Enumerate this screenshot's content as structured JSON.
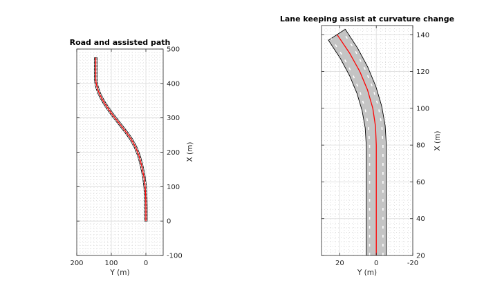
{
  "chart_data": [
    {
      "type": "line",
      "title": "Road and assisted path",
      "xlabel": "Y (m)",
      "ylabel": "X (m)",
      "xlim": [
        200,
        -50
      ],
      "ylim": [
        -100,
        500
      ],
      "x_reversed": true,
      "y_axis_side": "right",
      "x_ticks": [
        200,
        100,
        0
      ],
      "y_ticks": [
        -100,
        0,
        100,
        200,
        300,
        400,
        500
      ],
      "x_ticklabels": [
        "200",
        "100",
        "0"
      ],
      "y_ticklabels": [
        "-100",
        "0",
        "100",
        "200",
        "300",
        "400",
        "500"
      ],
      "grid": true,
      "road_width_m": 7.5,
      "road_start": {
        "X": 0,
        "Y": 0
      },
      "road_end": {
        "X": 475,
        "Y": 145
      },
      "series": [
        {
          "kind": "road-centerline",
          "color": "#000000",
          "x": [
            0,
            0,
            0.5,
            2,
            6,
            12,
            20,
            30,
            42,
            56,
            70,
            84,
            98,
            110,
            120,
            128,
            134,
            139,
            142,
            144,
            145,
            145,
            145
          ],
          "y": [
            0,
            40,
            70,
            100,
            130,
            160,
            190,
            215,
            237,
            257,
            275,
            293,
            311,
            328,
            343,
            357,
            369,
            382,
            392,
            402,
            412,
            440,
            475
          ]
        },
        {
          "kind": "assisted-path",
          "color": "#ff0000",
          "x": [
            0,
            0,
            0.5,
            2,
            6,
            12,
            20,
            30,
            42,
            56,
            70,
            84,
            98,
            110,
            120,
            128,
            134,
            139,
            142,
            144,
            145,
            145,
            145
          ],
          "y": [
            0,
            40,
            70,
            100,
            130,
            160,
            190,
            215,
            237,
            257,
            275,
            293,
            311,
            328,
            343,
            357,
            369,
            382,
            392,
            402,
            412,
            440,
            475
          ]
        }
      ]
    },
    {
      "type": "line",
      "title": "Lane keeping assist at curvature change",
      "xlabel": "Y (m)",
      "ylabel": "X (m)",
      "xlim": [
        30,
        -20
      ],
      "ylim": [
        20,
        145
      ],
      "x_reversed": true,
      "y_axis_side": "right",
      "x_ticks": [
        20,
        0,
        -20
      ],
      "y_ticks": [
        20,
        40,
        60,
        80,
        100,
        120,
        140
      ],
      "x_ticklabels": [
        "20",
        "0",
        "-20"
      ],
      "y_ticklabels": [
        "20",
        "40",
        "60",
        "80",
        "100",
        "120",
        "140"
      ],
      "grid": true,
      "road_width_m": 11,
      "series": [
        {
          "kind": "road-centerline",
          "color": "#000000",
          "x": [
            0,
            0,
            0,
            0.6,
            2.4,
            5.4,
            9.6,
            15.0,
            21.6
          ],
          "y": [
            20,
            60,
            80,
            90,
            100,
            110,
            120,
            130,
            140
          ]
        },
        {
          "kind": "assisted-path",
          "color": "#ff0000",
          "x": [
            0,
            0,
            0,
            0.4,
            1.9,
            4.8,
            9.0,
            14.6,
            21.4
          ],
          "y": [
            20,
            60,
            80,
            90,
            100,
            110,
            120,
            130,
            140
          ]
        }
      ]
    }
  ]
}
